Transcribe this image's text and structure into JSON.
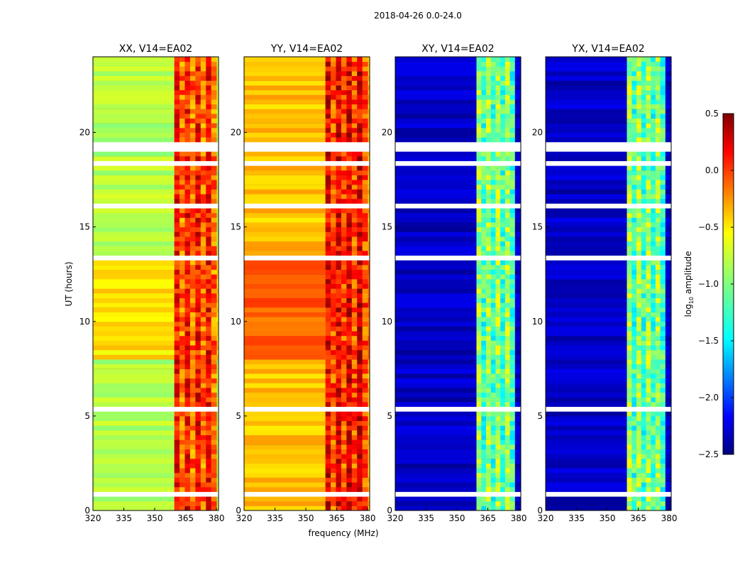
{
  "figure": {
    "suptitle": "2018-04-26 0.0-24.0",
    "xlabel": "frequency (MHz)",
    "ylabel": "UT (hours)"
  },
  "chart_data": [
    {
      "type": "heatmap",
      "title": "XX, V14=EA02",
      "x_range": [
        320,
        381
      ],
      "y_range": [
        0,
        24
      ],
      "x_ticks": [
        320,
        335,
        350,
        365,
        380
      ],
      "y_ticks": [
        0,
        5,
        10,
        15,
        20
      ],
      "base_log_amplitude": -0.85,
      "rfi_band_mhz": [
        359.5,
        380
      ],
      "rfi_log_amplitude": 0.1
    },
    {
      "type": "heatmap",
      "title": "YY, V14=EA02",
      "x_range": [
        320,
        381
      ],
      "y_range": [
        0,
        24
      ],
      "x_ticks": [
        320,
        335,
        350,
        365,
        380
      ],
      "y_ticks": [
        0,
        5,
        10,
        15,
        20
      ],
      "base_log_amplitude": -0.45,
      "rfi_band_mhz": [
        359.5,
        380
      ],
      "rfi_log_amplitude": 0.2
    },
    {
      "type": "heatmap",
      "title": "XY, V14=EA02",
      "x_range": [
        320,
        381
      ],
      "y_range": [
        0,
        24
      ],
      "x_ticks": [
        320,
        335,
        350,
        365,
        380
      ],
      "y_ticks": [
        0,
        5,
        10,
        15,
        20
      ],
      "base_log_amplitude": -2.3,
      "rfi_band_mhz": [
        359.5,
        378
      ],
      "rfi_log_amplitude": -0.9
    },
    {
      "type": "heatmap",
      "title": "YX, V14=EA02",
      "x_range": [
        320,
        381
      ],
      "y_range": [
        0,
        24
      ],
      "x_ticks": [
        320,
        335,
        350,
        365,
        380
      ],
      "y_ticks": [
        0,
        5,
        10,
        15,
        20
      ],
      "base_log_amplitude": -2.3,
      "rfi_band_mhz": [
        359.5,
        378
      ],
      "rfi_log_amplitude": -0.9
    }
  ],
  "colorbar": {
    "label": "log10 amplitude",
    "label_base": "log",
    "label_sub": "10",
    "label_rest": " amplitude",
    "range": [
      -2.5,
      0.5
    ],
    "ticks": [
      0.5,
      0.0,
      -0.5,
      -1.0,
      -1.5,
      -2.0,
      -2.5
    ],
    "tick_labels": [
      "0.5",
      "0.0",
      "−0.5",
      "−1.0",
      "−1.5",
      "−2.0",
      "−2.5"
    ],
    "colormap": "jet"
  },
  "flagged_ut_ranges": [
    [
      0.8,
      1.0
    ],
    [
      18.9,
      19.6
    ],
    [
      13.3,
      13.5
    ],
    [
      16.1,
      16.3
    ],
    [
      5.3,
      5.5
    ],
    [
      18.2,
      18.4
    ]
  ]
}
